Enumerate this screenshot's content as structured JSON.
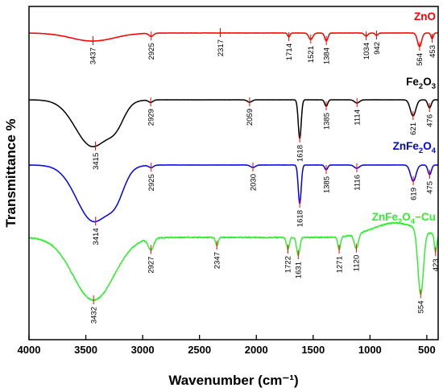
{
  "chart_data": {
    "type": "line",
    "xlabel": "Wavenumber (cm⁻¹)",
    "ylabel": "Transmittance %",
    "xlim": [
      4000,
      400
    ],
    "x_reversed": true,
    "xticks": [
      4000,
      3500,
      3000,
      2500,
      2000,
      1500,
      1000,
      500
    ],
    "y_ticks_shown": false,
    "grid": false,
    "legend": "none",
    "series": [
      {
        "name": "ZnO",
        "color": "#ff0000",
        "peaks": [
          3437,
          2925,
          2317,
          1714,
          1521,
          1384,
          1034,
          942,
          564,
          453
        ],
        "peak_labels": [
          "3437",
          "2925",
          "2317",
          "1714",
          "1521",
          "1384",
          "1034",
          "942",
          "564",
          "453"
        ]
      },
      {
        "name": "Fe2O3",
        "color": "#000000",
        "peaks": [
          3415,
          2929,
          2059,
          1618,
          1385,
          1114,
          621,
          476
        ],
        "peak_labels": [
          "3415",
          "2929",
          "2059",
          "1618",
          "1385",
          "1114",
          "621",
          "476"
        ]
      },
      {
        "name": "ZnFe2O4",
        "color": "#0000ff",
        "peaks": [
          3414,
          2925,
          2030,
          1618,
          1385,
          1116,
          619,
          475
        ],
        "peak_labels": [
          "3414",
          "2925",
          "2030",
          "1618",
          "1385",
          "1116",
          "619",
          "475"
        ]
      },
      {
        "name": "ZnFe2O4-Cu",
        "color": "#33ee33",
        "peaks": [
          3432,
          2927,
          2347,
          1722,
          1631,
          1271,
          1120,
          554,
          423
        ],
        "peak_labels": [
          "3432",
          "2927",
          "2347",
          "1722",
          "1631",
          "1271",
          "1120",
          "554",
          "423"
        ]
      }
    ]
  }
}
